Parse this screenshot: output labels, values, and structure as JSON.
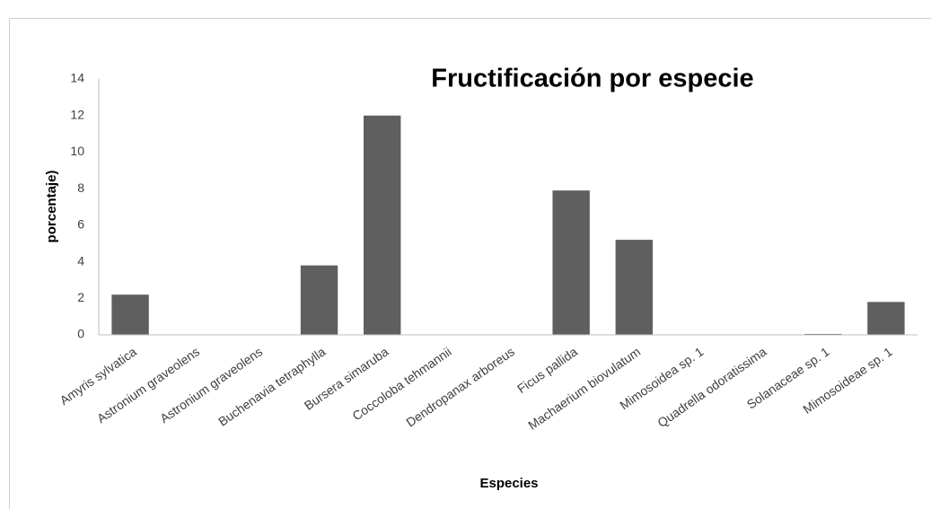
{
  "chart_data": {
    "type": "bar",
    "title": "Fructificación por especie",
    "x_label": "Especies",
    "y_label": "porcentaje)",
    "categories": [
      "Amyris sylvatica",
      "Astronium graveolens",
      "Astronium graveolens",
      "Buchenavia tetraphylla",
      "Bursera simaruba",
      "Coccoloba tehmannii",
      "Dendropanax arboreus",
      "Ficus pallida",
      "Machaerium biovulatum",
      "Mimosoidea sp. 1",
      "Quadrella odoratissima",
      "Solanaceae sp. 1",
      "Mimosoideae sp. 1"
    ],
    "values": [
      2.2,
      0,
      0,
      3.8,
      12,
      0,
      0,
      7.9,
      5.2,
      0,
      0,
      0.05,
      1.8
    ],
    "color": "#5f5f5f",
    "ylim": [
      0,
      14
    ],
    "yticks": [
      0,
      2,
      4,
      6,
      8,
      10,
      12,
      14
    ],
    "grid": false
  }
}
